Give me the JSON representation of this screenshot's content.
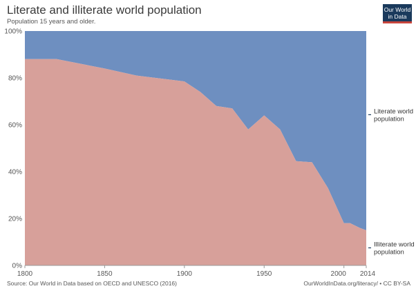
{
  "header": {
    "title": "Literate and illiterate world population",
    "subtitle": "Population 15 years and older."
  },
  "logo": {
    "line1": "Our World",
    "line2": "in Data"
  },
  "footer": {
    "source": "Source: Our World in Data based on OECD and UNESCO (2016)",
    "credit": "OurWorldInData.org/literacy/ • CC BY-SA"
  },
  "colors": {
    "literate": "#6e8fc0",
    "illiterate": "#d7a09a",
    "logo_bg": "#1a3a5c",
    "logo_accent": "#c8453c"
  },
  "chart_data": {
    "type": "area",
    "stacked": true,
    "title": "Literate and illiterate world population",
    "subtitle": "Population 15 years and older.",
    "x": [
      1800,
      1820,
      1850,
      1870,
      1900,
      1910,
      1920,
      1930,
      1940,
      1950,
      1960,
      1970,
      1980,
      1990,
      2000,
      2004,
      2010,
      2014
    ],
    "series": [
      {
        "name": "Illiterate world population",
        "color": "#d7a09a",
        "values": [
          88,
          88,
          84,
          81,
          78.5,
          74,
          68,
          67,
          58,
          64,
          58,
          44.5,
          44,
          33,
          18,
          18,
          16,
          15
        ]
      },
      {
        "name": "Literate world population",
        "color": "#6e8fc0",
        "values": [
          12,
          12,
          16,
          19,
          21.5,
          26,
          32,
          33,
          42,
          36,
          42,
          55.5,
          56,
          67,
          82,
          82,
          84,
          85
        ]
      }
    ],
    "xlim": [
      1800,
      2014
    ],
    "ylim": [
      0,
      100
    ],
    "x_ticks": [
      "1800",
      "1850",
      "1900",
      "1950",
      "2000",
      "2014"
    ],
    "y_ticks": [
      "0%",
      "20%",
      "40%",
      "60%",
      "80%",
      "100%"
    ],
    "legend": [
      {
        "label_line1": "Literate world",
        "label_line2": "population"
      },
      {
        "label_line1": "Illiterate world",
        "label_line2": "population"
      }
    ],
    "legend_position": "right",
    "grid": false
  }
}
